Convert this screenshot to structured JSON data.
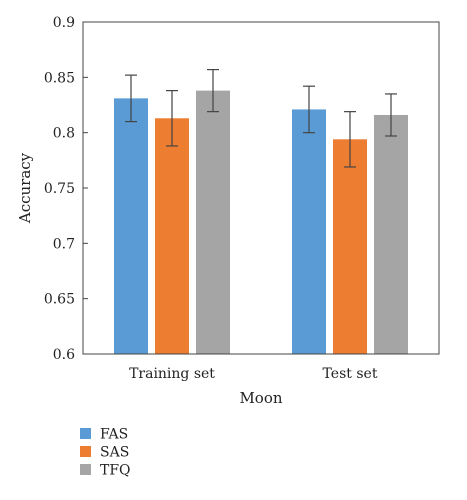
{
  "chart_data": {
    "type": "bar",
    "categories": [
      "Training set",
      "Test set"
    ],
    "series": [
      {
        "name": "FAS",
        "values": [
          0.831,
          0.821
        ],
        "errors": [
          0.021,
          0.021
        ],
        "color": "#5b9bd5"
      },
      {
        "name": "SAS",
        "values": [
          0.813,
          0.794
        ],
        "errors": [
          0.025,
          0.025
        ],
        "color": "#ed7d31"
      },
      {
        "name": "TFQ",
        "values": [
          0.838,
          0.816
        ],
        "errors": [
          0.019,
          0.019
        ],
        "color": "#a5a5a5"
      }
    ],
    "xlabel": "Moon",
    "ylabel": "Accuracy",
    "ylim": [
      0.6,
      0.9
    ],
    "yticks": [
      0.6,
      0.65,
      0.7,
      0.75,
      0.8,
      0.85,
      0.9
    ],
    "ytick_labels": [
      "0.6",
      "0.65",
      "0.7",
      "0.75",
      "0.8",
      "0.85",
      "0.9"
    ],
    "grid": false,
    "legend_position": "bottom-left"
  }
}
